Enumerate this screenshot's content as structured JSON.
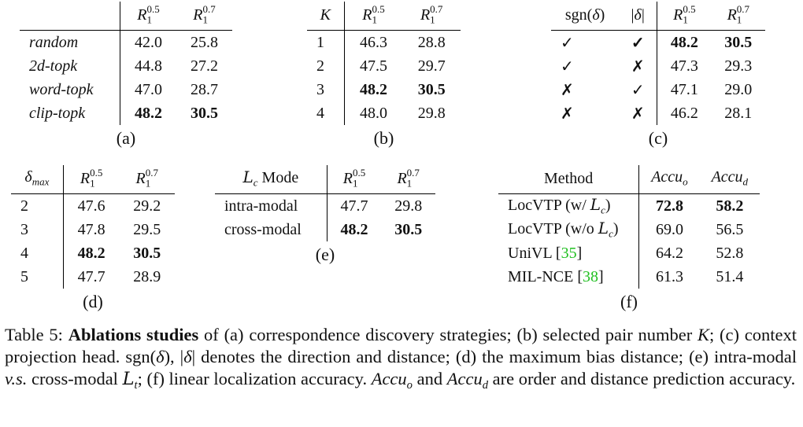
{
  "tables": [
    {
      "label": "(a)",
      "bold_row": 3,
      "header": [
        "",
        [
          {
            "t": "R",
            "s": "it"
          },
          {
            "t": "1",
            "s": "sub"
          },
          {
            "t": "0.5",
            "s": "sup"
          }
        ],
        [
          {
            "t": "R",
            "s": "it"
          },
          {
            "t": "1",
            "s": "sub"
          },
          {
            "t": "0.7",
            "s": "sup"
          }
        ]
      ],
      "rows": [
        [
          [
            {
              "t": "random",
              "s": "it"
            }
          ],
          "42.0",
          "25.8"
        ],
        [
          [
            {
              "t": "2d-topk",
              "s": "it"
            }
          ],
          "44.8",
          "27.2"
        ],
        [
          [
            {
              "t": "word-topk",
              "s": "it"
            }
          ],
          "47.0",
          "28.7"
        ],
        [
          [
            {
              "t": "clip-topk",
              "s": "it"
            }
          ],
          "48.2",
          "30.5"
        ]
      ]
    },
    {
      "label": "(b)",
      "bold_row": 2,
      "header": [
        [
          {
            "t": "K",
            "s": "it"
          }
        ],
        [
          {
            "t": "R",
            "s": "it"
          },
          {
            "t": "1",
            "s": "sub"
          },
          {
            "t": "0.5",
            "s": "sup"
          }
        ],
        [
          {
            "t": "R",
            "s": "it"
          },
          {
            "t": "1",
            "s": "sub"
          },
          {
            "t": "0.7",
            "s": "sup"
          }
        ]
      ],
      "rows": [
        [
          "1",
          "46.3",
          "28.8"
        ],
        [
          "2",
          "47.5",
          "29.7"
        ],
        [
          "3",
          "48.2",
          "30.5"
        ],
        [
          "4",
          "48.0",
          "29.8"
        ]
      ]
    },
    {
      "label": "(c)",
      "bold_row": 0,
      "header": [
        [
          {
            "t": "sgn("
          },
          {
            "t": "δ",
            "s": "it"
          },
          {
            "t": ")"
          }
        ],
        [
          {
            "t": "|"
          },
          {
            "t": "δ",
            "s": "it"
          },
          {
            "t": "|"
          }
        ],
        [
          {
            "t": "R",
            "s": "it"
          },
          {
            "t": "1",
            "s": "sub"
          },
          {
            "t": "0.5",
            "s": "sup"
          }
        ],
        [
          {
            "t": "R",
            "s": "it"
          },
          {
            "t": "1",
            "s": "sub"
          },
          {
            "t": "0.7",
            "s": "sup"
          }
        ]
      ],
      "rows": [
        [
          "✓",
          "✓",
          "48.2",
          "30.5"
        ],
        [
          "✓",
          "✗",
          "47.3",
          "29.3"
        ],
        [
          "✗",
          "✓",
          "47.1",
          "29.0"
        ],
        [
          "✗",
          "✗",
          "46.2",
          "28.1"
        ]
      ]
    },
    {
      "label": "(d)",
      "bold_row": 2,
      "header": [
        [
          {
            "t": "δ",
            "s": "it"
          },
          {
            "t": "max",
            "s": "subit"
          }
        ],
        [
          {
            "t": "R",
            "s": "it"
          },
          {
            "t": "1",
            "s": "sub"
          },
          {
            "t": "0.5",
            "s": "sup"
          }
        ],
        [
          {
            "t": "R",
            "s": "it"
          },
          {
            "t": "1",
            "s": "sub"
          },
          {
            "t": "0.7",
            "s": "sup"
          }
        ]
      ],
      "rows": [
        [
          "2",
          "47.6",
          "29.2"
        ],
        [
          "3",
          "47.8",
          "29.5"
        ],
        [
          "4",
          "48.2",
          "30.5"
        ],
        [
          "5",
          "47.7",
          "28.9"
        ]
      ]
    },
    {
      "label": "(e)",
      "bold_row": 1,
      "header": [
        [
          {
            "t": "L",
            "s": "cal"
          },
          {
            "t": "c",
            "s": "subit"
          },
          {
            "t": " Mode"
          }
        ],
        [
          {
            "t": "R",
            "s": "it"
          },
          {
            "t": "1",
            "s": "sub"
          },
          {
            "t": "0.5",
            "s": "sup"
          }
        ],
        [
          {
            "t": "R",
            "s": "it"
          },
          {
            "t": "1",
            "s": "sub"
          },
          {
            "t": "0.7",
            "s": "sup"
          }
        ]
      ],
      "rows": [
        [
          "intra-modal",
          "47.7",
          "29.8"
        ],
        [
          "cross-modal",
          "48.2",
          "30.5"
        ]
      ]
    },
    {
      "label": "(f)",
      "bold_row": 0,
      "header": [
        "Method",
        [
          {
            "t": "Accu",
            "s": "it"
          },
          {
            "t": "o",
            "s": "subit"
          }
        ],
        [
          {
            "t": "Accu",
            "s": "it"
          },
          {
            "t": "d",
            "s": "subit"
          }
        ]
      ],
      "rows": [
        [
          [
            {
              "t": "LocVTP (w/ "
            },
            {
              "t": "L",
              "s": "cal"
            },
            {
              "t": "c",
              "s": "subit"
            },
            {
              "t": ")"
            }
          ],
          "72.8",
          "58.2"
        ],
        [
          [
            {
              "t": "LocVTP (w/o "
            },
            {
              "t": "L",
              "s": "cal"
            },
            {
              "t": "c",
              "s": "subit"
            },
            {
              "t": ")"
            }
          ],
          "69.0",
          "56.5"
        ],
        [
          [
            {
              "t": "UniVL ["
            },
            {
              "t": "35",
              "s": "cite"
            },
            {
              "t": "]"
            }
          ],
          "64.2",
          "52.8"
        ],
        [
          [
            {
              "t": "MIL-NCE ["
            },
            {
              "t": "38",
              "s": "cite"
            },
            {
              "t": "]"
            }
          ],
          "61.3",
          "51.4"
        ]
      ]
    }
  ],
  "caption": [
    {
      "t": "Table 5: "
    },
    {
      "t": "Ablations studies",
      "s": "b"
    },
    {
      "t": " of (a) correspondence discovery strategies; (b) selected pair number "
    },
    {
      "t": "K",
      "s": "it"
    },
    {
      "t": "; (c) context projection head. sgn("
    },
    {
      "t": "δ",
      "s": "it"
    },
    {
      "t": "), |"
    },
    {
      "t": "δ",
      "s": "it"
    },
    {
      "t": "| denotes the direction and distance; (d) the maximum bias distance; (e) intra-modal "
    },
    {
      "t": "v.s.",
      "s": "it"
    },
    {
      "t": " cross-modal "
    },
    {
      "t": "L",
      "s": "cal"
    },
    {
      "t": "t",
      "s": "subit"
    },
    {
      "t": "; (f) linear localization accuracy. "
    },
    {
      "t": "Accu",
      "s": "it"
    },
    {
      "t": "o",
      "s": "subit"
    },
    {
      "t": " and "
    },
    {
      "t": "Accu",
      "s": "it"
    },
    {
      "t": "d",
      "s": "subit"
    },
    {
      "t": " are order and distance prediction accuracy."
    }
  ]
}
